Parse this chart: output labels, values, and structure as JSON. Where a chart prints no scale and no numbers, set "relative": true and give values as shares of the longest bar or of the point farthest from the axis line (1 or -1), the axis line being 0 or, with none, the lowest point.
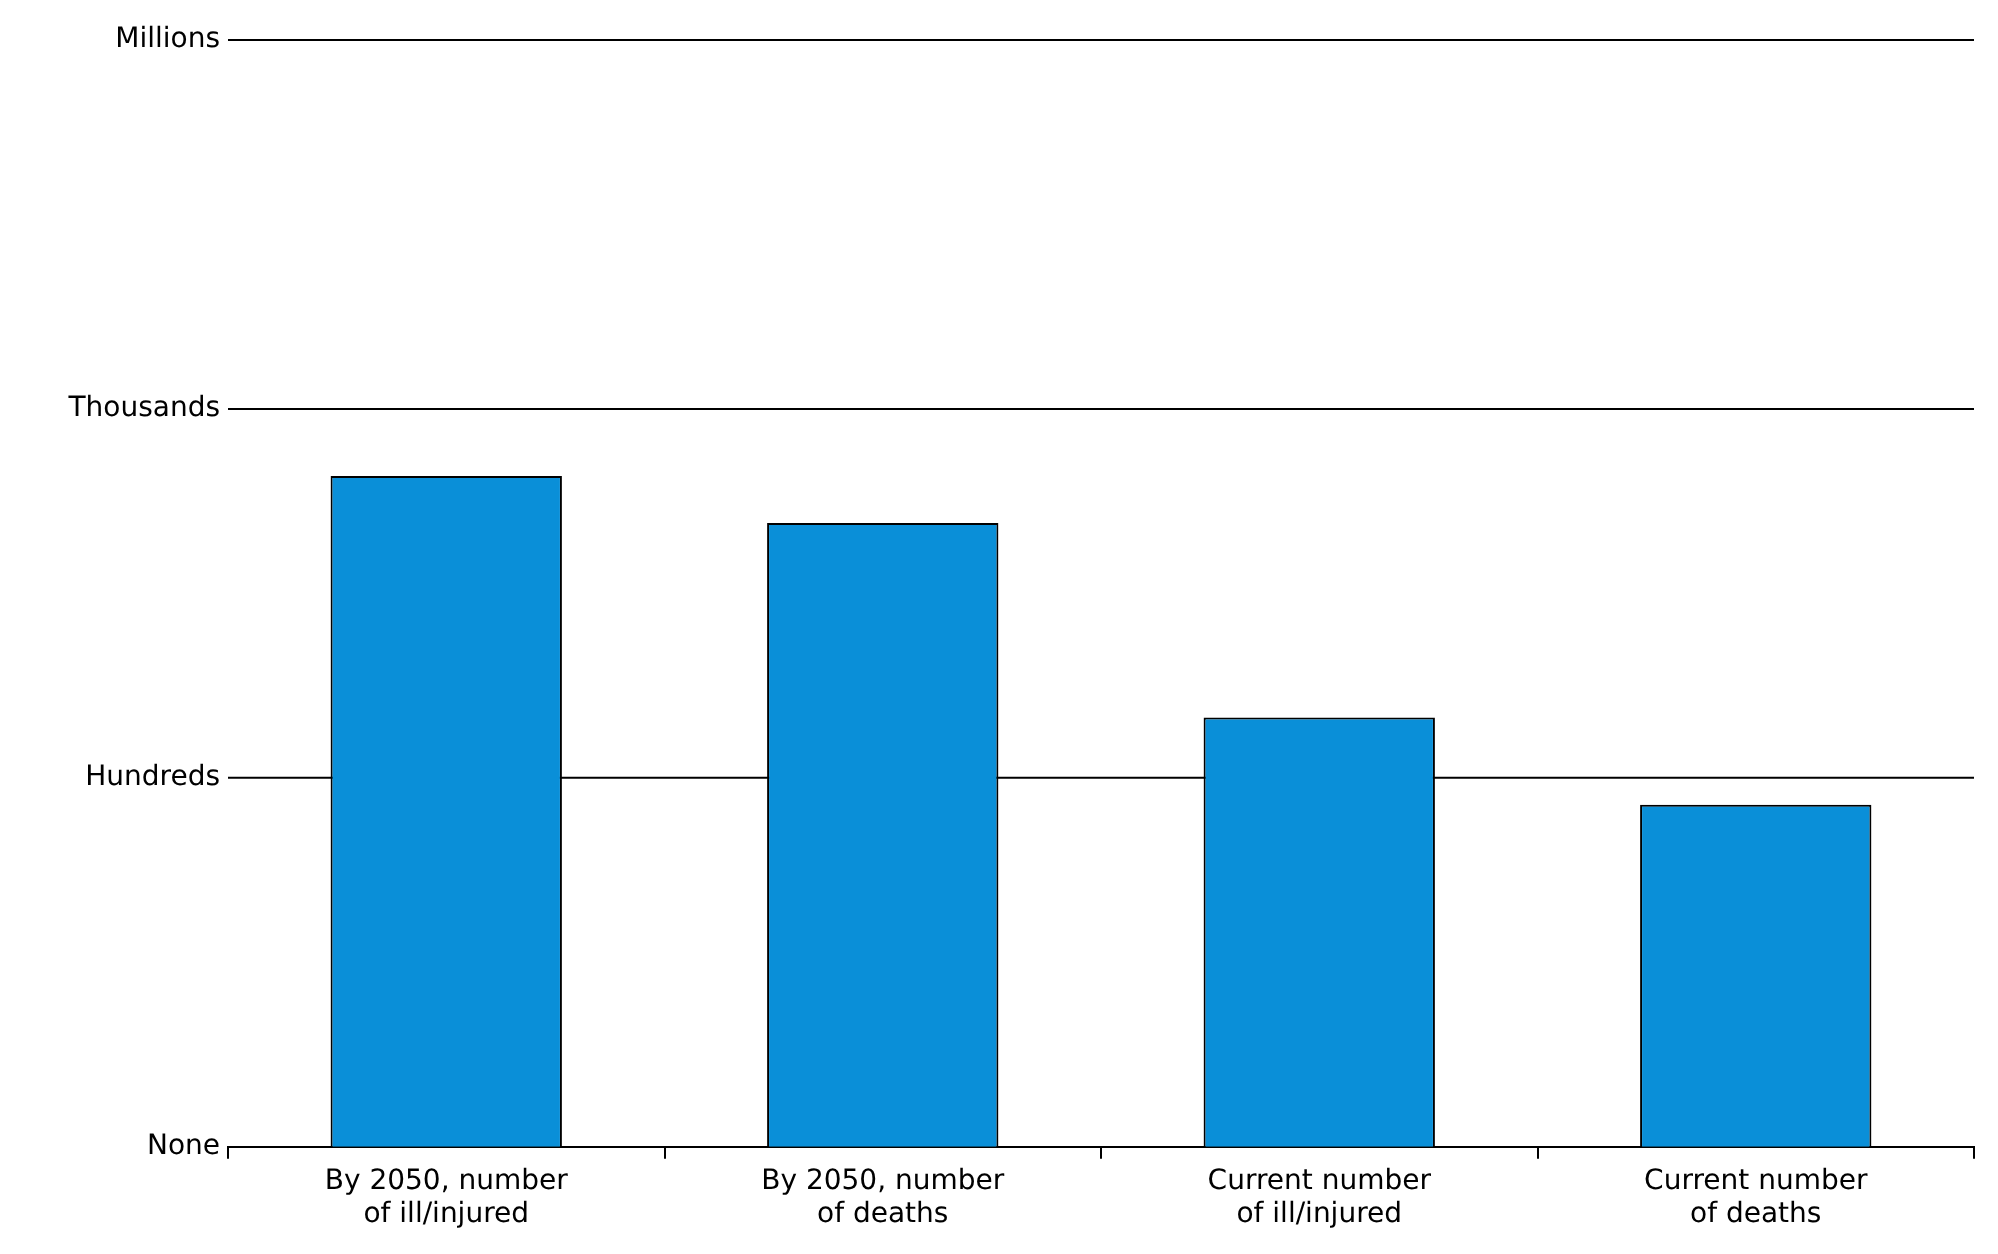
{
  "chart_data": {
    "type": "bar",
    "relative": true,
    "categories": [
      "By 2050, number of ill/injured",
      "By 2050, number of deaths",
      "Current number of ill/injured",
      "Current number of deaths"
    ],
    "values": [
      1,
      0.93,
      0.64,
      0.51
    ],
    "color": "#0a8fd8",
    "annotations": [
      "None"
    ],
    "ref_lines": [
      {
        "axis": "y",
        "value": 0.55,
        "label": "Hundreds"
      },
      {
        "axis": "y",
        "value": 1.1,
        "label": "Thousands"
      },
      {
        "axis": "y",
        "value": 1.65,
        "label": "Millions"
      }
    ],
    "legend": false
  }
}
